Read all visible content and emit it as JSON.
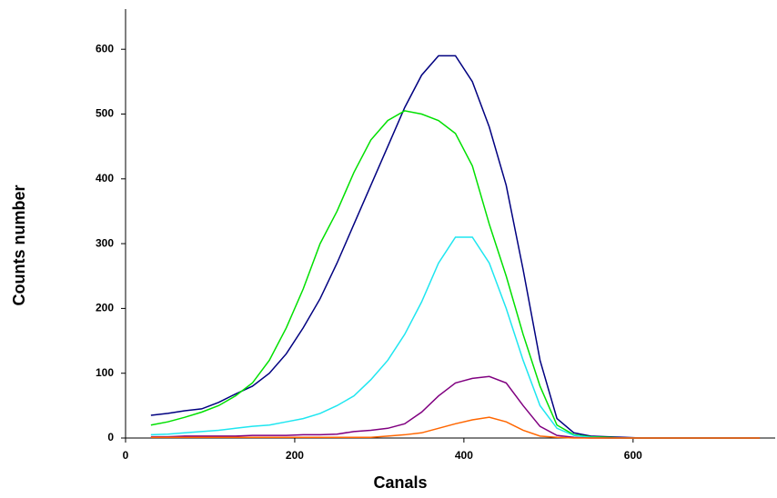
{
  "chart_data": {
    "type": "line",
    "x_label": "Canals",
    "y_label": "Counts number",
    "x": [
      30,
      50,
      70,
      90,
      110,
      130,
      150,
      170,
      190,
      210,
      230,
      250,
      270,
      290,
      310,
      330,
      350,
      370,
      390,
      410,
      430,
      450,
      470,
      490,
      510,
      530,
      550,
      570,
      590,
      610,
      630,
      650,
      670,
      690,
      710,
      730,
      750
    ],
    "series": [
      {
        "name": "navy",
        "color": "#000080",
        "values": [
          35,
          38,
          42,
          45,
          55,
          68,
          80,
          100,
          130,
          170,
          215,
          270,
          330,
          390,
          450,
          510,
          560,
          590,
          590,
          550,
          480,
          390,
          260,
          120,
          30,
          8,
          3,
          2,
          1,
          0,
          0,
          0,
          0,
          0,
          0,
          0,
          0
        ]
      },
      {
        "name": "green",
        "color": "#00e000",
        "values": [
          20,
          25,
          32,
          40,
          50,
          65,
          85,
          120,
          170,
          230,
          300,
          350,
          410,
          460,
          490,
          505,
          500,
          490,
          470,
          420,
          330,
          250,
          160,
          80,
          20,
          5,
          2,
          1,
          0,
          0,
          0,
          0,
          0,
          0,
          0,
          0,
          0
        ]
      },
      {
        "name": "cyan",
        "color": "#1ee6f0",
        "values": [
          5,
          6,
          8,
          10,
          12,
          15,
          18,
          20,
          25,
          30,
          38,
          50,
          65,
          90,
          120,
          160,
          210,
          270,
          310,
          310,
          270,
          200,
          120,
          50,
          15,
          4,
          1,
          0,
          0,
          0,
          0,
          0,
          0,
          0,
          0,
          0,
          0
        ]
      },
      {
        "name": "purple",
        "color": "#800080",
        "values": [
          2,
          2,
          3,
          3,
          3,
          3,
          4,
          4,
          4,
          5,
          5,
          6,
          10,
          12,
          15,
          22,
          40,
          65,
          85,
          92,
          95,
          85,
          50,
          18,
          4,
          1,
          0,
          0,
          0,
          0,
          0,
          0,
          0,
          0,
          0,
          0,
          0
        ]
      },
      {
        "name": "orange",
        "color": "#ff6600",
        "values": [
          1,
          1,
          1,
          1,
          1,
          1,
          1,
          1,
          1,
          1,
          1,
          1,
          1,
          1,
          3,
          5,
          8,
          15,
          22,
          28,
          32,
          25,
          12,
          3,
          1,
          0,
          0,
          0,
          0,
          0,
          0,
          0,
          0,
          0,
          0,
          0,
          0
        ]
      }
    ],
    "xlim": [
      0,
      768
    ],
    "xticks": [
      0,
      200,
      400,
      600
    ],
    "ylim": [
      0,
      662
    ],
    "yticks": [
      0,
      100,
      200,
      300,
      400,
      500,
      600
    ],
    "grid": false
  }
}
